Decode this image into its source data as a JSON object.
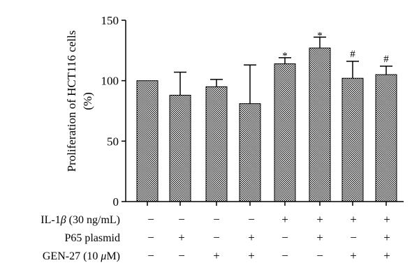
{
  "chart_data": {
    "type": "bar",
    "ylabel_line1": "Proliferation of HCT116 cells",
    "ylabel_line2": "(%)",
    "ylim": [
      0,
      150
    ],
    "yticks": [
      0,
      50,
      100,
      150
    ],
    "bars": [
      {
        "value": 100,
        "error": 0,
        "annotation": ""
      },
      {
        "value": 88,
        "error": 19,
        "annotation": ""
      },
      {
        "value": 95,
        "error": 6,
        "annotation": ""
      },
      {
        "value": 81,
        "error": 32,
        "annotation": ""
      },
      {
        "value": 114,
        "error": 5,
        "annotation": "*"
      },
      {
        "value": 127,
        "error": 9,
        "annotation": "*"
      },
      {
        "value": 102,
        "error": 14,
        "annotation": "#"
      },
      {
        "value": 105,
        "error": 7,
        "annotation": "#"
      }
    ],
    "conditions": [
      {
        "label_prefix": "IL-1",
        "label_symbol": "β",
        "label_suffix": " (30 ng/mL)",
        "values": [
          "−",
          "−",
          "−",
          "−",
          "+",
          "+",
          "+",
          "+"
        ]
      },
      {
        "label_prefix": "P65 plasmid",
        "label_symbol": "",
        "label_suffix": "",
        "values": [
          "−",
          "+",
          "−",
          "+",
          "−",
          "+",
          "−",
          "+"
        ]
      },
      {
        "label_prefix": "GEN-27 (10 ",
        "label_symbol": "μ",
        "label_suffix": "M)",
        "values": [
          "−",
          "−",
          "+",
          "+",
          "−",
          "−",
          "+",
          "+"
        ]
      }
    ],
    "colors": {
      "bar_pattern_dark": "#222222",
      "bar_pattern_light": "#ffffff",
      "axis": "#000000"
    }
  }
}
